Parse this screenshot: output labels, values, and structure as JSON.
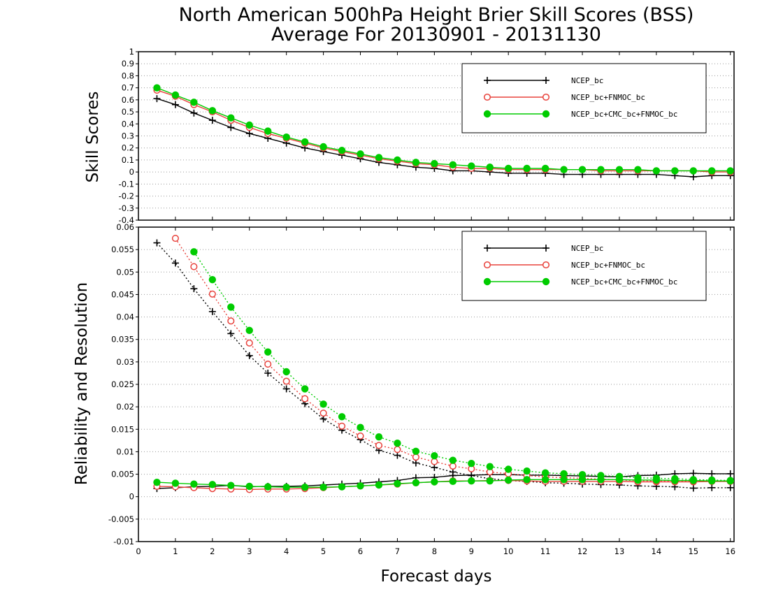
{
  "chart_data": [
    {
      "type": "line",
      "title": "North American 500hPa Height Brier Skill Scores (BSS)",
      "subtitle": "Average For 20130901 - 20131130",
      "ylabel": "Skill Scores",
      "xlabel": "",
      "xlim": [
        0,
        16.1
      ],
      "ylim": [
        -0.4,
        1.0
      ],
      "x_ticks": [
        "0",
        "1",
        "2",
        "3",
        "4",
        "5",
        "6",
        "7",
        "8",
        "9",
        "10",
        "11",
        "12",
        "13",
        "14",
        "15",
        "16"
      ],
      "y_ticks": [
        "-0.4",
        "-0.3",
        "-0.2",
        "-0.1",
        "0",
        "0.1",
        "0.2",
        "0.3",
        "0.4",
        "0.5",
        "0.6",
        "0.7",
        "0.8",
        "0.9",
        "1"
      ],
      "grid": "horizontal dotted",
      "legend_placement": "top-right",
      "x": [
        0.5,
        1,
        1.5,
        2,
        2.5,
        3,
        3.5,
        4,
        4.5,
        5,
        5.5,
        6,
        6.5,
        7,
        7.5,
        8,
        8.5,
        9,
        9.5,
        10,
        10.5,
        11,
        11.5,
        12,
        12.5,
        13,
        13.5,
        14,
        14.5,
        15,
        15.5,
        16
      ],
      "series": [
        {
          "name": "NCEP_bc",
          "color": "#000000",
          "marker": "plus",
          "values": [
            0.61,
            0.56,
            0.49,
            0.43,
            0.37,
            0.32,
            0.28,
            0.24,
            0.2,
            0.17,
            0.14,
            0.11,
            0.08,
            0.06,
            0.04,
            0.03,
            0.01,
            0.01,
            0.0,
            -0.01,
            -0.01,
            -0.01,
            -0.02,
            -0.02,
            -0.02,
            -0.02,
            -0.02,
            -0.02,
            -0.03,
            -0.04,
            -0.03,
            -0.03
          ]
        },
        {
          "name": "NCEP_bc+FNMOC_bc",
          "color": "#e8423c",
          "marker": "open-circle",
          "values": [
            0.68,
            0.63,
            0.56,
            0.5,
            0.43,
            0.37,
            0.32,
            0.28,
            0.24,
            0.2,
            0.17,
            0.14,
            0.11,
            0.09,
            0.07,
            0.06,
            0.04,
            0.03,
            0.03,
            0.02,
            0.02,
            0.02,
            0.02,
            0.02,
            0.01,
            0.01,
            0.01,
            0.01,
            0.01,
            0.01,
            0.0,
            0.0
          ]
        },
        {
          "name": "NCEP_bc+CMC_bc+FNMOC_bc",
          "color": "#00cc00",
          "marker": "filled-circle",
          "values": [
            0.7,
            0.64,
            0.58,
            0.51,
            0.45,
            0.39,
            0.34,
            0.29,
            0.25,
            0.21,
            0.18,
            0.15,
            0.12,
            0.1,
            0.08,
            0.07,
            0.06,
            0.05,
            0.04,
            0.03,
            0.03,
            0.03,
            0.02,
            0.02,
            0.02,
            0.02,
            0.02,
            0.01,
            0.01,
            0.01,
            0.01,
            0.01
          ]
        }
      ]
    },
    {
      "type": "line",
      "title": "",
      "ylabel": "Reliability and Resolution",
      "xlabel": "Forecast days",
      "xlim": [
        0,
        16.1
      ],
      "ylim": [
        -0.01,
        0.06
      ],
      "x_ticks": [
        "0",
        "1",
        "2",
        "3",
        "4",
        "5",
        "6",
        "7",
        "8",
        "9",
        "10",
        "11",
        "12",
        "13",
        "14",
        "15",
        "16"
      ],
      "y_ticks": [
        "-0.01",
        "-0.005",
        "0",
        "0.005",
        "0.01",
        "0.015",
        "0.02",
        "0.025",
        "0.03",
        "0.035",
        "0.04",
        "0.045",
        "0.05",
        "0.055",
        "0.06"
      ],
      "grid": "horizontal dotted",
      "legend_placement": "top-right",
      "x": [
        0.5,
        1,
        1.5,
        2,
        2.5,
        3,
        3.5,
        4,
        4.5,
        5,
        5.5,
        6,
        6.5,
        7,
        7.5,
        8,
        8.5,
        9,
        9.5,
        10,
        10.5,
        11,
        11.5,
        12,
        12.5,
        13,
        13.5,
        14,
        14.5,
        15,
        15.5,
        16
      ],
      "series": [
        {
          "name": "NCEP_bc",
          "color": "#000000",
          "marker": "plus",
          "resolution": [
            0.0565,
            0.052,
            0.0463,
            0.0412,
            0.0363,
            0.0314,
            0.0275,
            0.024,
            0.0207,
            0.0173,
            0.0148,
            0.0127,
            0.0103,
            0.0092,
            0.0075,
            0.0065,
            0.0055,
            0.0047,
            0.004,
            0.0036,
            0.0034,
            0.0031,
            0.003,
            0.0028,
            0.0027,
            0.0026,
            0.0024,
            0.0023,
            0.0022,
            0.0019,
            0.002,
            0.002
          ],
          "reliability": [
            0.0018,
            0.002,
            0.0022,
            0.0023,
            0.0025,
            0.0022,
            0.0023,
            0.0023,
            0.0024,
            0.0026,
            0.0028,
            0.003,
            0.0033,
            0.0036,
            0.0042,
            0.0043,
            0.0047,
            0.0048,
            0.0049,
            0.0049,
            0.0048,
            0.0048,
            0.0047,
            0.0046,
            0.0045,
            0.0044,
            0.0047,
            0.0048,
            0.0051,
            0.0052,
            0.0051,
            0.0051
          ]
        },
        {
          "name": "NCEP_bc+FNMOC_bc",
          "color": "#e8423c",
          "marker": "open-circle",
          "resolution": [
            null,
            0.0575,
            0.0512,
            0.0451,
            0.0391,
            0.0342,
            0.0295,
            0.0257,
            0.0218,
            0.0186,
            0.0157,
            0.0135,
            0.0114,
            0.0105,
            0.0088,
            0.0078,
            0.0068,
            0.0062,
            0.0055,
            0.0051,
            0.0047,
            0.0044,
            0.0042,
            0.0041,
            0.0039,
            0.0037,
            0.0036,
            0.0035,
            0.0035,
            0.0034,
            0.0034,
            0.0034
          ],
          "reliability": [
            0.0023,
            0.0022,
            0.002,
            0.0018,
            0.0017,
            0.0016,
            0.0017,
            0.0017,
            0.0018,
            0.002,
            0.0022,
            0.0024,
            0.0026,
            0.0028,
            0.0031,
            0.0033,
            0.0035,
            0.0035,
            0.0036,
            0.0036,
            0.0035,
            0.0034,
            0.0034,
            0.0034,
            0.0034,
            0.0034,
            0.0033,
            0.0033,
            0.0033,
            0.0033,
            0.0034,
            0.0034
          ]
        },
        {
          "name": "NCEP_bc+CMC_bc+FNMOC_bc",
          "color": "#00cc00",
          "marker": "filled-circle",
          "resolution": [
            null,
            null,
            0.0545,
            0.0483,
            0.0422,
            0.037,
            0.0322,
            0.0278,
            0.024,
            0.0206,
            0.0178,
            0.0154,
            0.0133,
            0.0119,
            0.0101,
            0.0091,
            0.0081,
            0.0074,
            0.0067,
            0.0061,
            0.0057,
            0.0053,
            0.0051,
            0.0049,
            0.0047,
            0.0045,
            0.0042,
            0.0041,
            0.004,
            0.0038,
            0.0037,
            0.0036
          ],
          "reliability": [
            0.0032,
            0.003,
            0.0028,
            0.0027,
            0.0025,
            0.0023,
            0.0022,
            0.0021,
            0.0021,
            0.0021,
            0.0022,
            0.0024,
            0.0026,
            0.0029,
            0.0031,
            0.0033,
            0.0034,
            0.0035,
            0.0035,
            0.0037,
            0.0038,
            0.0038,
            0.0038,
            0.0038,
            0.0038,
            0.0038,
            0.0037,
            0.0037,
            0.0036,
            0.0036,
            0.0035,
            0.0035
          ]
        }
      ]
    }
  ]
}
